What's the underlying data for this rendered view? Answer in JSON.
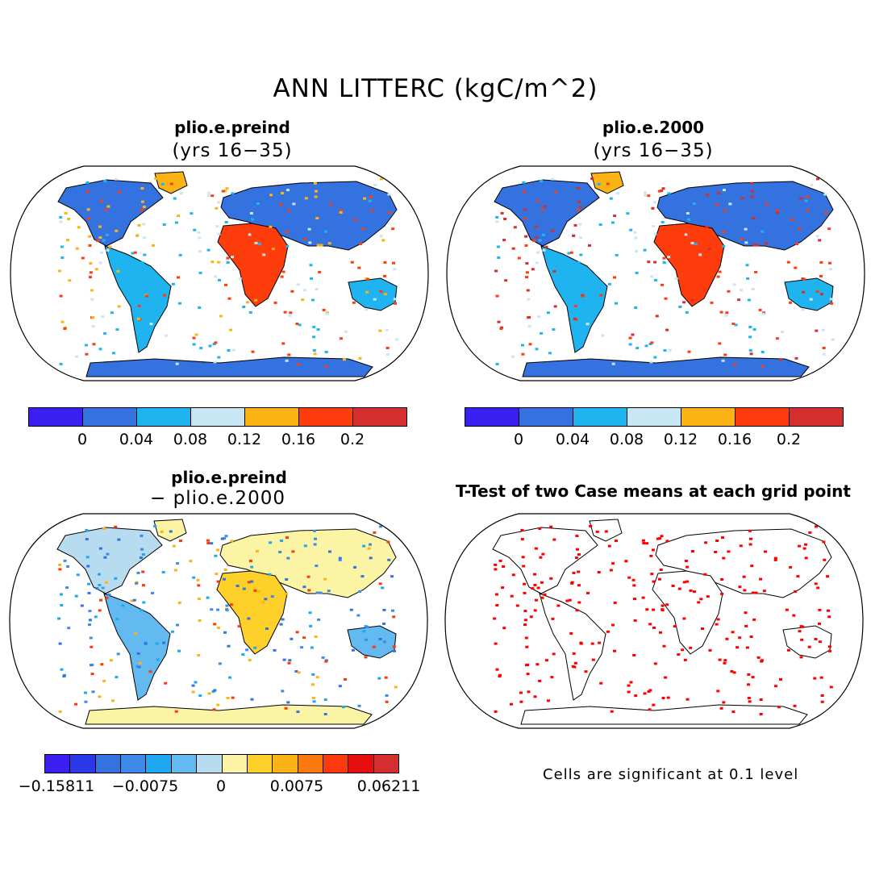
{
  "title": "ANN LITTERC (kgC/m^2)",
  "panels": [
    {
      "title": "plio.e.preind",
      "subtitle": "(yrs 16−35)"
    },
    {
      "title": "plio.e.2000",
      "subtitle": "(yrs 16−35)"
    },
    {
      "title": "plio.e.preind",
      "subtitle": "− plio.e.2000"
    },
    {
      "title": "T-Test of two Case means at each grid point",
      "subtitle": ""
    }
  ],
  "colorbar_top": {
    "colors": [
      "#3a1ff0",
      "#3472e0",
      "#1fb4f0",
      "#c9e6f5",
      "#fbb316",
      "#fe3c0c",
      "#d42e2e"
    ],
    "labels": [
      "0",
      "0.04",
      "0.08",
      "0.12",
      "0.16",
      "0.2"
    ]
  },
  "colorbar_diff": {
    "colors": [
      "#3a1ff0",
      "#2a38e8",
      "#3472e0",
      "#3d8ae8",
      "#1fa8f0",
      "#62baf0",
      "#b8dcef",
      "#fbf4a4",
      "#fdd12a",
      "#fbb316",
      "#fa7a10",
      "#fa3a0c",
      "#e60f0f",
      "#d42e2e"
    ],
    "labels": [
      "−0.15811",
      "−0.0075",
      "0",
      "0.0075",
      "0.06211"
    ]
  },
  "note": "Cells are significant at 0.1 level"
}
